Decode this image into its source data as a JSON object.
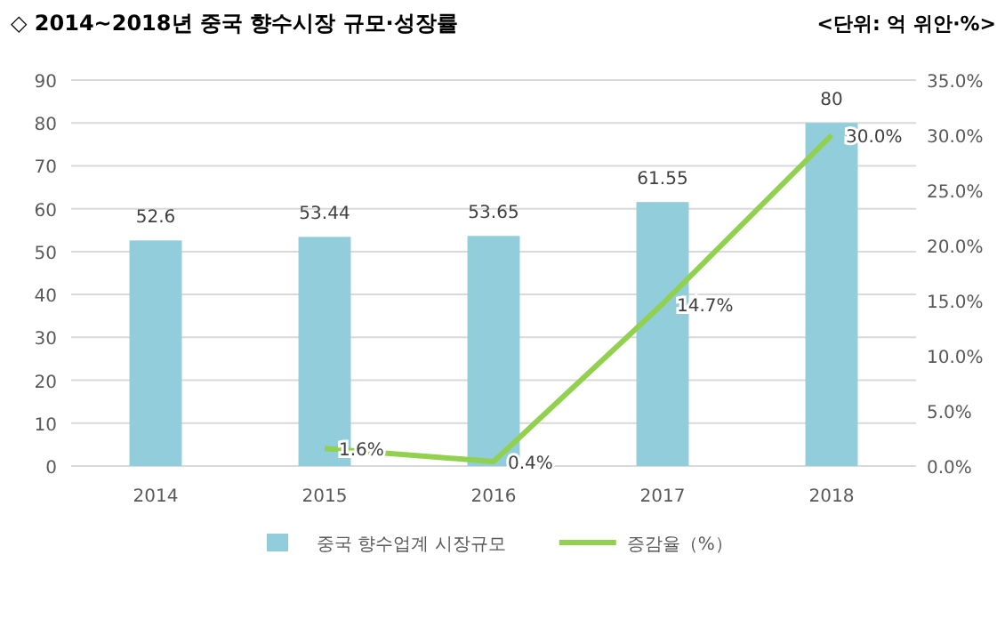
{
  "chart_data": {
    "type": "bar",
    "title": "◇ 2014~2018년 중국 향수시장 규모·성장률",
    "annotations": [
      "<단위: 억 위안·%>"
    ],
    "categories": [
      "2014",
      "2015",
      "2016",
      "2017",
      "2018"
    ],
    "series": [
      {
        "name": "중국 향수업계 시장규모",
        "color": "#92cddc",
        "values": [
          52.6,
          53.44,
          53.65,
          61.55,
          80
        ],
        "value_labels": [
          "52.6",
          "53.44",
          "53.65",
          "61.55",
          "80"
        ]
      },
      {
        "name": "증감율（%）",
        "type": "line",
        "axis": "y2",
        "color": "#92d050",
        "values": [
          null,
          1.6,
          0.4,
          14.7,
          30.0
        ],
        "value_labels": [
          null,
          "1.6%",
          "0.4%",
          "14.7%",
          "30.0%"
        ]
      }
    ],
    "ylim": [
      0,
      90
    ],
    "yticks": [
      0,
      10,
      20,
      30,
      40,
      50,
      60,
      70,
      80,
      90
    ],
    "y2lim": [
      0,
      35
    ],
    "y2ticks": [
      {
        "value": 0,
        "label": "0.0%"
      },
      {
        "value": 5,
        "label": "5.0%"
      },
      {
        "value": 10,
        "label": "10.0%"
      },
      {
        "value": 15,
        "label": "15.0%"
      },
      {
        "value": 20,
        "label": "20.0%"
      },
      {
        "value": 25,
        "label": "25.0%"
      },
      {
        "value": 30,
        "label": "30.0%"
      },
      {
        "value": 35,
        "label": "35.0%"
      }
    ],
    "grid": "y",
    "legend": "bottom"
  }
}
